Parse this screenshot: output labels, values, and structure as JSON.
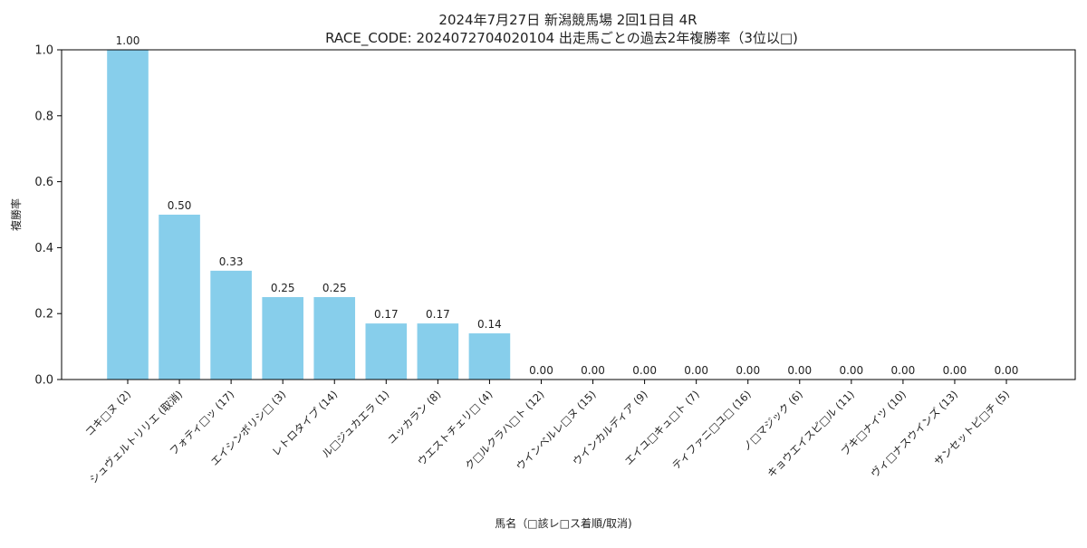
{
  "colors": {
    "bar": "#87ceeb",
    "axis": "#000000",
    "text": "#222222",
    "background": "#ffffff"
  },
  "chart_data": {
    "type": "bar",
    "title_line1": "2024年7月27日 新潟競馬場 2回1日目 4R",
    "title_line2": "RACE_CODE: 2024072704020104 出走馬ごとの過去2年複勝率（3位以□)",
    "xlabel": "馬名（□該レ□ス着順/取消)",
    "ylabel": "複勝率",
    "ylim": [
      0.0,
      1.0
    ],
    "yticks": [
      "0.0",
      "0.2",
      "0.4",
      "0.6",
      "0.8",
      "1.0"
    ],
    "grid": false,
    "categories": [
      "コキ□ヌ (2)",
      "シュヴェルトリリエ (取消)",
      "フォティ□ッ (17)",
      "エイシンボリシ□ (3)",
      "レトロタイプ (14)",
      "ル□ジュカエラ (1)",
      "ユッカラン (8)",
      "ウエストチェリ□ (4)",
      "ク□ルクラハ□ト (12)",
      "ウインベルレ□ヌ (15)",
      "ウインカルディア (9)",
      "エイユ□キュ□ト (7)",
      "ティファニ□ユ□ (16)",
      "ノ□マジック (6)",
      "キョウエイスピ□ル (11)",
      "ブキ□ナイツ (10)",
      "ヴィ□ナスウインズ (13)",
      "サンセットピ□チ (5)"
    ],
    "values": [
      1.0,
      0.5,
      0.33,
      0.25,
      0.25,
      0.17,
      0.17,
      0.14,
      0.0,
      0.0,
      0.0,
      0.0,
      0.0,
      0.0,
      0.0,
      0.0,
      0.0,
      0.0
    ],
    "value_labels": [
      "1.00",
      "0.50",
      "0.33",
      "0.25",
      "0.25",
      "0.17",
      "0.17",
      "0.14",
      "0.00",
      "0.00",
      "0.00",
      "0.00",
      "0.00",
      "0.00",
      "0.00",
      "0.00",
      "0.00",
      "0.00"
    ]
  }
}
